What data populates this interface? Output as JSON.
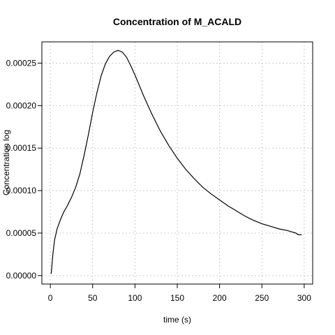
{
  "chart_data": {
    "type": "line",
    "title": "Concentration of M_ACALD",
    "xlabel": "time (s)",
    "ylabel": "Concentration log",
    "xlim": [
      -10,
      310
    ],
    "ylim": [
      -1e-05,
      0.000275
    ],
    "grid": true,
    "x_ticks": [
      0,
      50,
      100,
      150,
      200,
      250,
      300
    ],
    "x_tick_labels": [
      "0",
      "50",
      "100",
      "150",
      "200",
      "250",
      "300"
    ],
    "y_ticks": [
      0,
      5e-05,
      0.0001,
      0.00015,
      0.0002,
      0.00025
    ],
    "y_tick_labels": [
      "0.00000",
      "0.00005",
      "0.00010",
      "0.00015",
      "0.00020",
      "0.00025"
    ],
    "series": [
      {
        "x": [
          1,
          3,
          5,
          8,
          12,
          16,
          20,
          25,
          30,
          35,
          40,
          45,
          50,
          55,
          60,
          65,
          70,
          75,
          80,
          85,
          90,
          95,
          100,
          110,
          120,
          130,
          140,
          150,
          160,
          170,
          180,
          190,
          200,
          210,
          220,
          230,
          240,
          250,
          260,
          270,
          280,
          290,
          293,
          297
        ],
        "y": [
          2e-06,
          2.5e-05,
          4.2e-05,
          5.5e-05,
          6.6e-05,
          7.5e-05,
          8.2e-05,
          9.2e-05,
          0.000104,
          0.00012,
          0.000142,
          0.000166,
          0.000192,
          0.000215,
          0.000235,
          0.000249,
          0.000258,
          0.000263,
          0.000265,
          0.000263,
          0.000257,
          0.000247,
          0.000236,
          0.000212,
          0.00019,
          0.00017,
          0.000153,
          0.000138,
          0.000125,
          0.000114,
          0.000104,
          9.6e-05,
          8.9e-05,
          8.2e-05,
          7.6e-05,
          7e-05,
          6.5e-05,
          6.1e-05,
          5.8e-05,
          5.5e-05,
          5.3e-05,
          5e-05,
          4.8e-05,
          4.8e-05
        ]
      }
    ]
  }
}
